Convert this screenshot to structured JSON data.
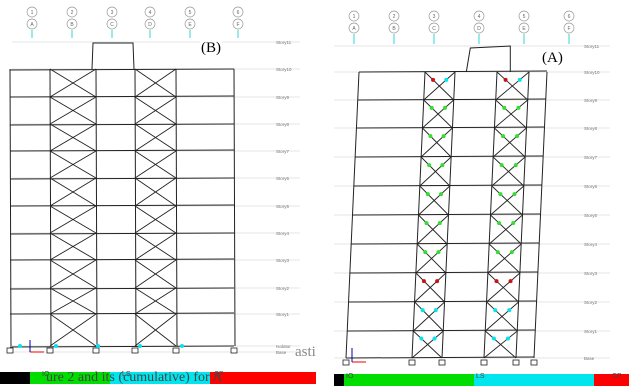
{
  "panels": [
    {
      "id": "B",
      "label": "(B)",
      "grid_labels": [
        "1",
        "2",
        "3",
        "4",
        "5",
        "6"
      ],
      "grid_sublabels": [
        "A",
        "B",
        "C",
        "D",
        "E",
        "F"
      ],
      "stories": [
        "Story11",
        "Story10",
        "Story9",
        "Story8",
        "Story7",
        "Story6",
        "Story5",
        "Story4",
        "Story3",
        "Story2",
        "Story1",
        "Isolator",
        "Base"
      ]
    },
    {
      "id": "A",
      "label": "(A)",
      "grid_labels": [
        "1",
        "2",
        "3",
        "4",
        "5",
        "6"
      ],
      "grid_sublabels": [
        "A",
        "B",
        "C",
        "D",
        "E",
        "F"
      ],
      "stories": [
        "Story11",
        "Story10",
        "Story9",
        "Story8",
        "Story7",
        "Story6",
        "Story5",
        "Story4",
        "Story3",
        "Story2",
        "Story1",
        "Base"
      ]
    }
  ],
  "legend": {
    "labels": [
      "IO",
      "LS",
      "CP"
    ],
    "colors": [
      "#000000",
      "#00dd00",
      "#00e5ee",
      "#ff0000"
    ]
  },
  "caption_fragment": "asti",
  "footer_text": "ure 2 and its (cumulative) for A"
}
